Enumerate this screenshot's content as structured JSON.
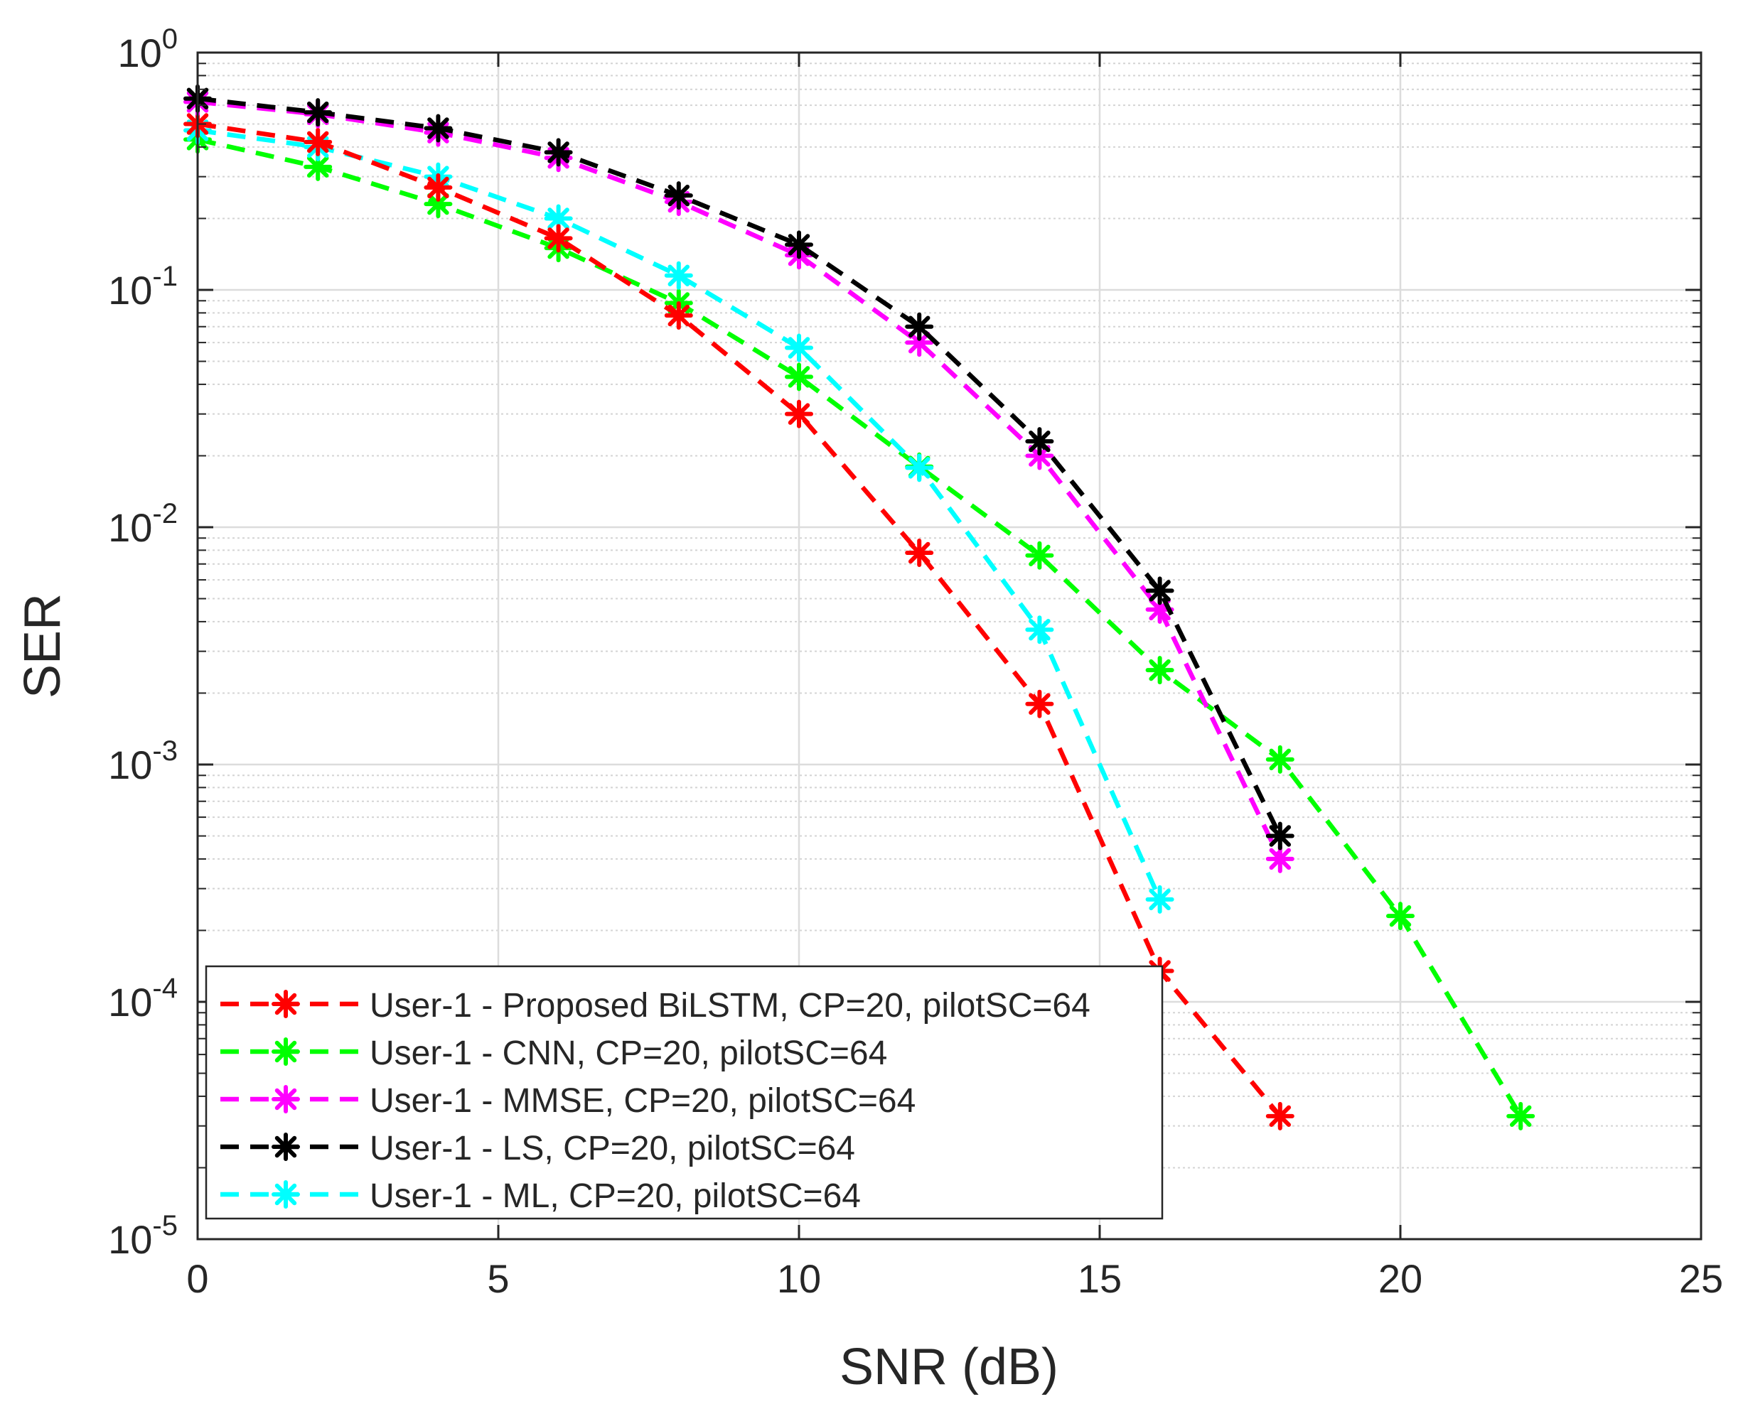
{
  "chart_data": {
    "type": "line",
    "title": "",
    "xlabel": "SNR (dB)",
    "ylabel": "SER",
    "xscale": "linear",
    "yscale": "log",
    "xlim": [
      0,
      25
    ],
    "ylim": [
      1e-05,
      1
    ],
    "xticks": [
      0,
      5,
      10,
      15,
      20,
      25
    ],
    "xtick_labels": [
      "0",
      "5",
      "10",
      "15",
      "20",
      "25"
    ],
    "yticks": [
      1e-05,
      0.0001,
      0.001,
      0.01,
      0.1,
      1
    ],
    "ytick_labels": [
      {
        "base": "10",
        "exp": "-5"
      },
      {
        "base": "10",
        "exp": "-4"
      },
      {
        "base": "10",
        "exp": "-3"
      },
      {
        "base": "10",
        "exp": "-2"
      },
      {
        "base": "10",
        "exp": "-1"
      },
      {
        "base": "10",
        "exp": "0"
      }
    ],
    "grid": true,
    "minor_grid": true,
    "legend_position": "bottom-left",
    "marker": "asterisk",
    "line_style": "dashed",
    "series": [
      {
        "name": "User-1 - Proposed BiLSTM, CP=20, pilotSC=64",
        "color": "#ff0000",
        "x": [
          0,
          2,
          4,
          6,
          8,
          10,
          12,
          14,
          16,
          18
        ],
        "y": [
          0.5,
          0.42,
          0.27,
          0.165,
          0.078,
          0.03,
          0.0078,
          0.0018,
          0.000135,
          3.3e-05
        ]
      },
      {
        "name": "User-1 - CNN, CP=20, pilotSC=64",
        "color": "#00ff00",
        "x": [
          0,
          2,
          4,
          6,
          8,
          10,
          12,
          14,
          16,
          18,
          20,
          22
        ],
        "y": [
          0.43,
          0.33,
          0.23,
          0.15,
          0.088,
          0.043,
          0.018,
          0.0076,
          0.0025,
          0.00105,
          0.00023,
          3.3e-05
        ]
      },
      {
        "name": "User-1 - MMSE, CP=20, pilotSC=64",
        "color": "#ff00ff",
        "x": [
          0,
          2,
          4,
          6,
          8,
          10,
          12,
          14,
          16,
          18
        ],
        "y": [
          0.62,
          0.55,
          0.46,
          0.36,
          0.235,
          0.14,
          0.06,
          0.02,
          0.0045,
          0.0004
        ]
      },
      {
        "name": "User-1 - LS, CP=20, pilotSC=64",
        "color": "#000000",
        "x": [
          0,
          2,
          4,
          6,
          8,
          10,
          12,
          14,
          16,
          18
        ],
        "y": [
          0.64,
          0.56,
          0.48,
          0.38,
          0.25,
          0.155,
          0.07,
          0.023,
          0.0054,
          0.0005
        ]
      },
      {
        "name": "User-1 - ML, CP=20, pilotSC=64",
        "color": "#00ffff",
        "x": [
          0,
          2,
          4,
          6,
          8,
          10,
          12,
          14,
          16
        ],
        "y": [
          0.47,
          0.4,
          0.3,
          0.2,
          0.115,
          0.057,
          0.0178,
          0.0037,
          0.00027
        ]
      }
    ]
  }
}
